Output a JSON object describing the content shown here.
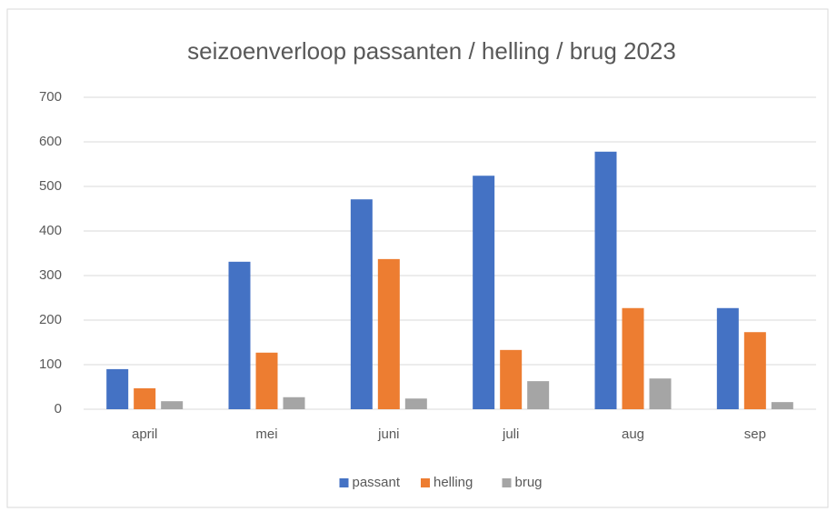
{
  "chart_data": {
    "type": "bar",
    "title": "seizoenverloop passanten / helling / brug 2023",
    "categories": [
      "april",
      "mei",
      "juni",
      "juli",
      "aug",
      "sep"
    ],
    "series": [
      {
        "name": "passant",
        "color": "#4472c4",
        "values": [
          90,
          331,
          471,
          524,
          578,
          227
        ]
      },
      {
        "name": "helling",
        "color": "#ed7d31",
        "values": [
          47,
          127,
          337,
          133,
          227,
          173
        ]
      },
      {
        "name": "brug",
        "color": "#a5a5a5",
        "values": [
          18,
          27,
          24,
          63,
          69,
          16
        ]
      }
    ],
    "ylim": [
      0,
      700
    ],
    "yticks": [
      0,
      100,
      200,
      300,
      400,
      500,
      600,
      700
    ],
    "grid": true,
    "legend": "bottom"
  }
}
